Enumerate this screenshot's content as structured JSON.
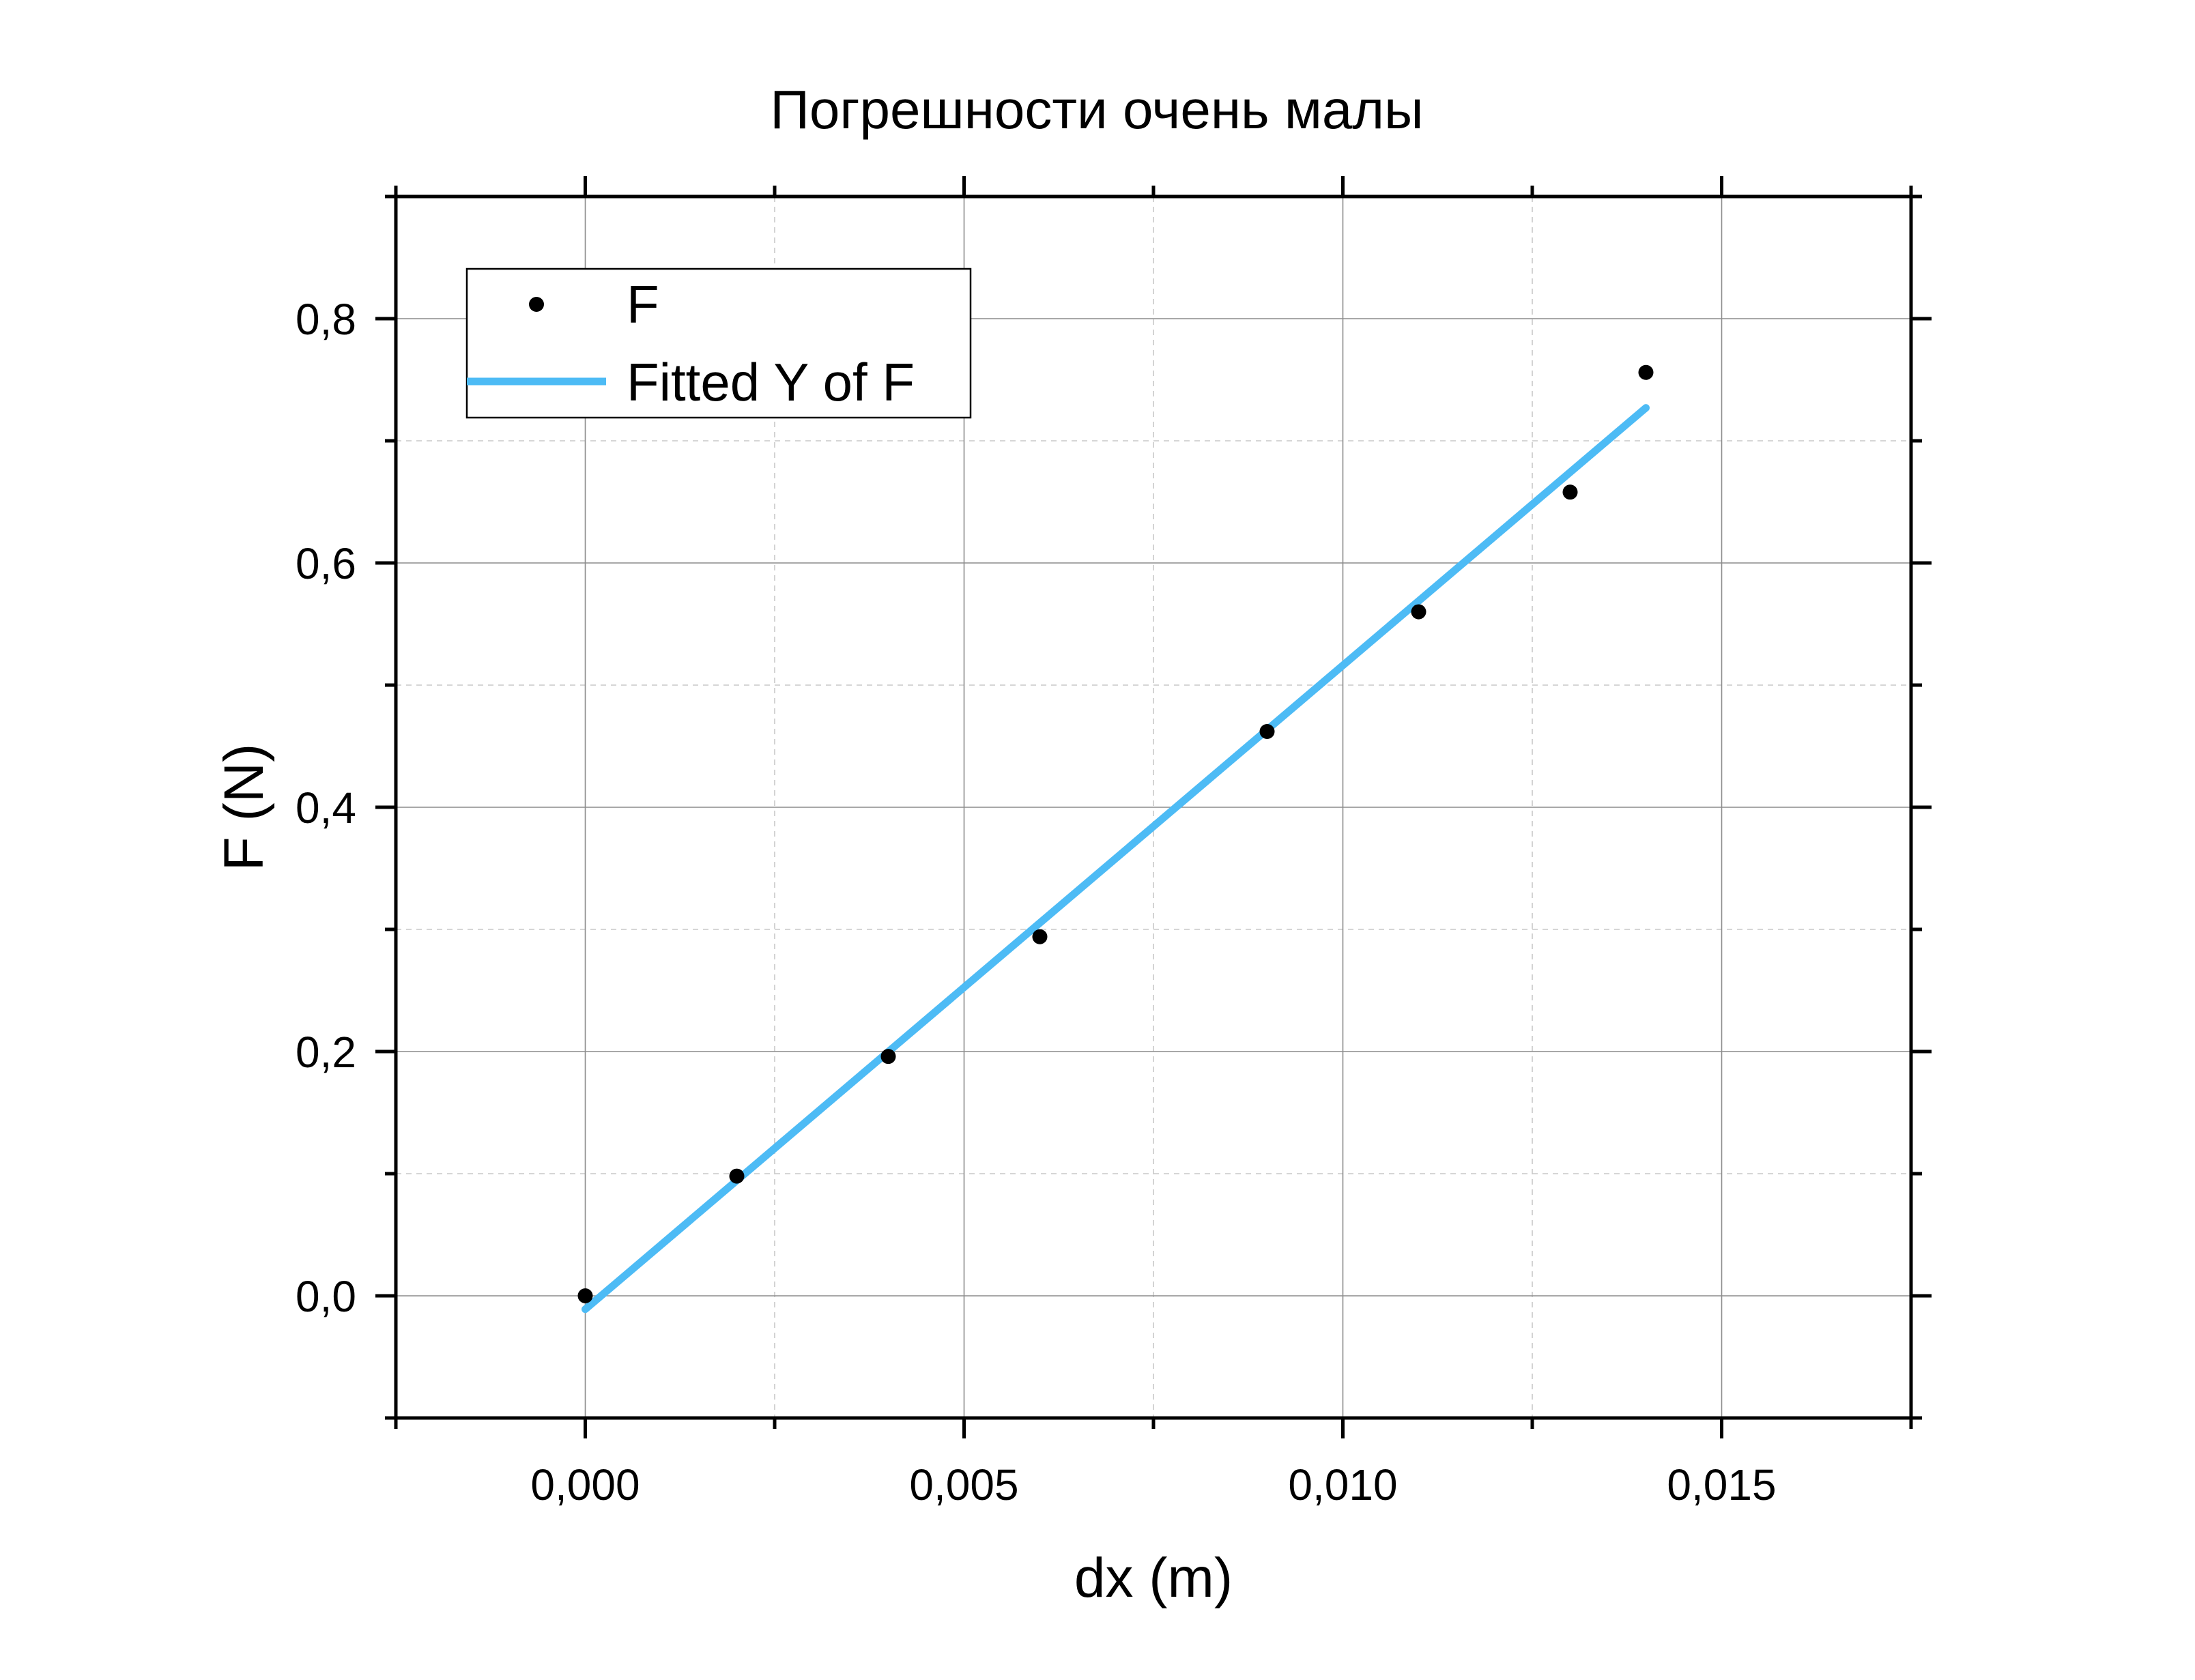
{
  "chart_data": {
    "type": "scatter",
    "title": "Погрешности очень малы",
    "xlabel": "dx (m)",
    "ylabel": "F (N)",
    "xlim": [
      -0.0025,
      0.0175
    ],
    "ylim": [
      -0.1,
      0.9
    ],
    "x_ticks": [
      0.0,
      0.005,
      0.01,
      0.015
    ],
    "x_tick_labels": [
      "0,000",
      "0,005",
      "0,010",
      "0,015"
    ],
    "x_minor_ticks": [
      -0.0025,
      0.0025,
      0.0075,
      0.0125,
      0.0175
    ],
    "y_ticks": [
      0.0,
      0.2,
      0.4,
      0.6,
      0.8
    ],
    "y_tick_labels": [
      "0,0",
      "0,2",
      "0,4",
      "0,6",
      "0,8"
    ],
    "y_minor_ticks": [
      -0.1,
      0.1,
      0.3,
      0.5,
      0.7,
      0.9
    ],
    "grid": true,
    "legend_position": "top-left",
    "series": [
      {
        "name": "F",
        "kind": "scatter",
        "color": "#000000",
        "x": [
          0.0,
          0.002,
          0.004,
          0.006,
          0.009,
          0.011,
          0.013,
          0.014
        ],
        "y": [
          0.0,
          0.098,
          0.196,
          0.294,
          0.462,
          0.56,
          0.658,
          0.756
        ]
      },
      {
        "name": "Fitted Y of F",
        "kind": "line",
        "color": "#4dbbf5",
        "x": [
          0.0,
          0.014
        ],
        "y": [
          -0.011,
          0.727
        ]
      }
    ]
  }
}
